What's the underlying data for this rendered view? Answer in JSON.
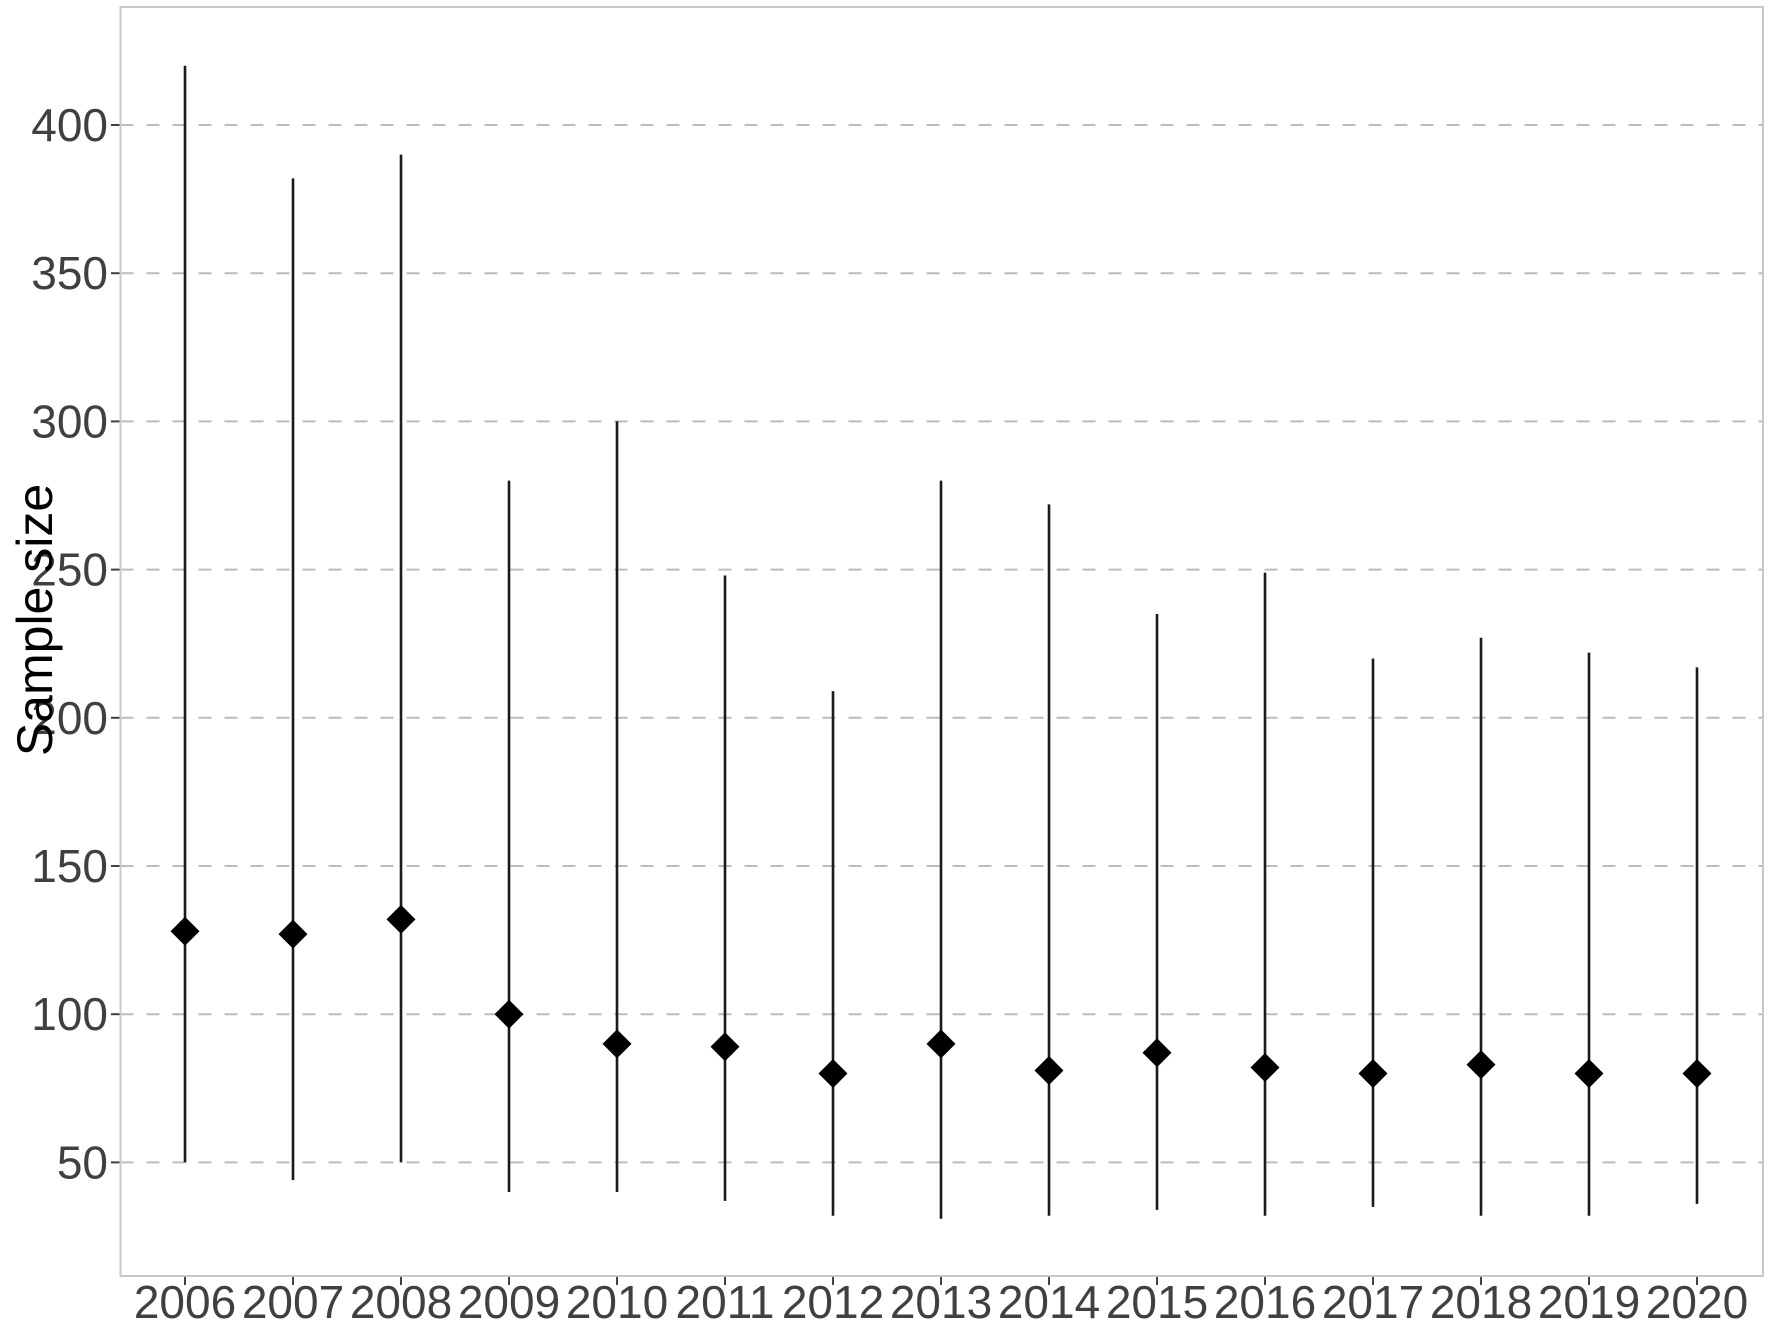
{
  "chart_data": {
    "type": "scatter",
    "subtype": "pointrange",
    "title": "",
    "xlabel": "",
    "ylabel": "Sample size",
    "x": [
      2006,
      2007,
      2008,
      2009,
      2010,
      2011,
      2012,
      2013,
      2014,
      2015,
      2016,
      2017,
      2018,
      2019,
      2020
    ],
    "x_tick_labels": [
      "2006",
      "2007",
      "2008",
      "2009",
      "2010",
      "2011",
      "2012",
      "2013",
      "2014",
      "2015",
      "2016",
      "2017",
      "2018",
      "2019",
      "2020"
    ],
    "series": [
      {
        "name": "median",
        "marker": "diamond",
        "values": [
          128,
          127,
          132,
          100,
          90,
          89,
          80,
          90,
          81,
          87,
          82,
          80,
          83,
          80,
          80
        ]
      },
      {
        "name": "range_min",
        "marker": "none",
        "values": [
          50,
          44,
          50,
          40,
          40,
          37,
          32,
          31,
          32,
          34,
          32,
          35,
          32,
          32,
          36
        ]
      },
      {
        "name": "range_max",
        "marker": "none",
        "values": [
          420,
          382,
          390,
          280,
          300,
          248,
          209,
          280,
          272,
          235,
          249,
          220,
          227,
          222,
          217
        ]
      }
    ],
    "yticks": [
      50,
      100,
      150,
      200,
      250,
      300,
      350,
      400
    ],
    "y_tick_labels": [
      "50",
      "100",
      "150",
      "200",
      "250",
      "300",
      "350",
      "400"
    ],
    "ylim": [
      12,
      440
    ],
    "grid": "horizontal-dashed",
    "legend": "none",
    "colors": {
      "background": "#ffffff",
      "panel_border": "#c8c8c8",
      "gridline": "#bcbcbc",
      "range_line": "#1a1a1a",
      "median_point": "#000000",
      "tick_mark": "#404040",
      "tick_label": "#404040",
      "axis_title": "#000000"
    }
  }
}
